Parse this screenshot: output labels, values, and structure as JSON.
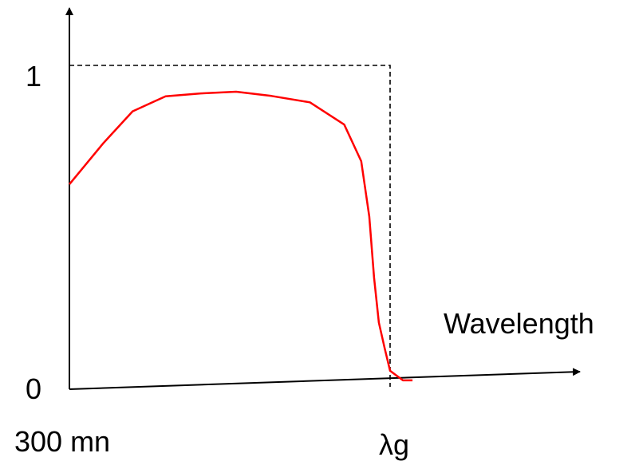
{
  "chart_data": {
    "type": "line",
    "x_start_label": "300 mn",
    "x_end_label": "λg",
    "xlabel": "Wavelength",
    "y_tick_labels": [
      "0",
      "1"
    ],
    "ylim": [
      0,
      1
    ],
    "x": [
      0,
      0.105,
      0.197,
      0.3,
      0.41,
      0.52,
      0.63,
      0.75,
      0.857,
      0.91,
      0.935,
      0.95,
      0.965,
      0.983,
      1.0,
      1.04,
      1.07
    ],
    "series": [
      {
        "values": [
          0.63,
          0.757,
          0.857,
          0.904,
          0.913,
          0.918,
          0.905,
          0.885,
          0.816,
          0.702,
          0.53,
          0.34,
          0.2,
          0.12,
          0.05,
          0.02,
          0.02
        ],
        "color": "#ff0000"
      }
    ],
    "ideal_response": {
      "style": "dashed",
      "color": "#000000",
      "level": 1,
      "cutoff_x": 1.0
    },
    "grid": false
  }
}
